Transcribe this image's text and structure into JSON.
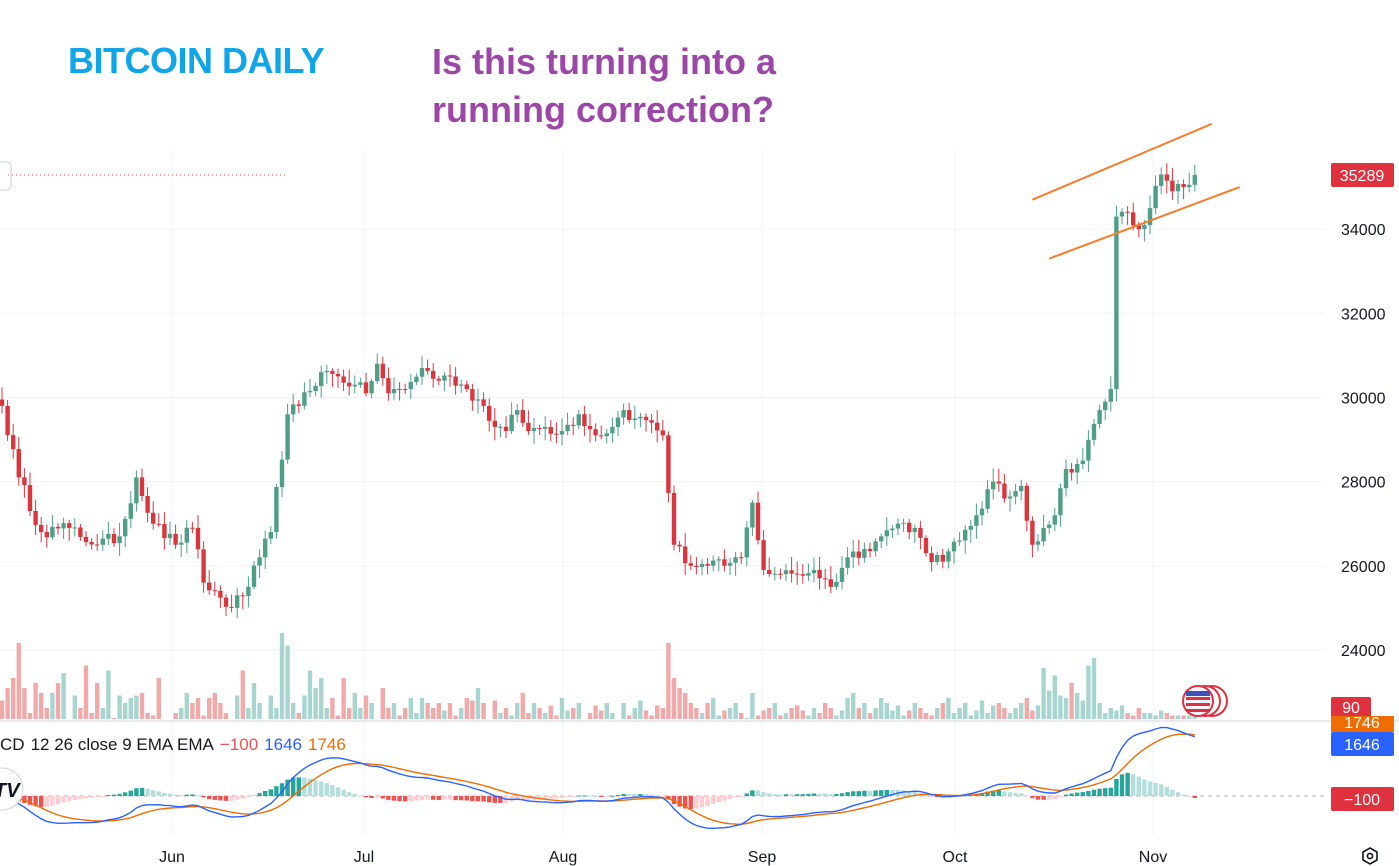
{
  "header": {
    "left_title": "BITCOIN DAILY",
    "right_title_line1": "Is this turning into a",
    "right_title_line2": "running correction?"
  },
  "colors": {
    "up": "#26a69a",
    "down": "#ef5350",
    "up_candle": "#4e9e88",
    "down_candle": "#d9363e",
    "left_title": "#0ea5e9",
    "right_title": "#9c47a8",
    "channel": "#f57c2a",
    "macd_line": "#2962ff",
    "signal_line": "#ef6c00",
    "price_tag": "#e0313f",
    "macd_tag": "#2962ff"
  },
  "indicator": {
    "legend_prefix": "CD",
    "legend_params": "12 26 close 9 EMA EMA",
    "hist_value": "−100",
    "macd_value": "1646",
    "signal_value": "1746",
    "hist_tag": "−100",
    "macd_tag": "1646",
    "signal_tag_partial": "1746"
  },
  "price_tag": "35289",
  "volume_tag": "90",
  "logo": "TV",
  "chart_data": {
    "type": "candlestick",
    "y_axis": {
      "ticks": [
        24000,
        26000,
        28000,
        30000,
        32000,
        34000
      ],
      "labels": [
        "24000",
        "26000",
        "28000",
        "30000",
        "32000",
        "34000"
      ]
    },
    "x_axis": {
      "labels": [
        "Jun",
        "Jul",
        "Aug",
        "Sep",
        "Oct",
        "Nov"
      ]
    },
    "ylim": [
      22700,
      36700
    ],
    "grid": true,
    "last_price": 35289,
    "channel": {
      "upper": [
        [
          184,
          34700
        ],
        [
          216,
          36500
        ]
      ],
      "lower": [
        [
          187,
          33300
        ],
        [
          221,
          35000
        ]
      ]
    },
    "anchors": [
      [
        0,
        29800
      ],
      [
        3,
        28100
      ],
      [
        7,
        26800
      ],
      [
        12,
        26900
      ],
      [
        17,
        26500
      ],
      [
        21,
        26700
      ],
      [
        24,
        28100
      ],
      [
        27,
        27000
      ],
      [
        31,
        26500
      ],
      [
        34,
        26900
      ],
      [
        36,
        25600
      ],
      [
        41,
        25000
      ],
      [
        44,
        25500
      ],
      [
        46,
        26200
      ],
      [
        48,
        26800
      ],
      [
        51,
        29600
      ],
      [
        53,
        29800
      ],
      [
        57,
        30600
      ],
      [
        60,
        30500
      ],
      [
        63,
        30300
      ],
      [
        65,
        30100
      ],
      [
        67,
        30800
      ],
      [
        69,
        30100
      ],
      [
        72,
        30200
      ],
      [
        75,
        30700
      ],
      [
        78,
        30400
      ],
      [
        80,
        30500
      ],
      [
        83,
        30200
      ],
      [
        86,
        29800
      ],
      [
        88,
        29300
      ],
      [
        90,
        29200
      ],
      [
        92,
        29700
      ],
      [
        94,
        29200
      ],
      [
        97,
        29300
      ],
      [
        100,
        29200
      ],
      [
        103,
        29600
      ],
      [
        106,
        29100
      ],
      [
        109,
        29300
      ],
      [
        111,
        29700
      ],
      [
        113,
        29500
      ],
      [
        116,
        29400
      ],
      [
        118,
        29100
      ],
      [
        120,
        26500
      ],
      [
        123,
        26000
      ],
      [
        126,
        26000
      ],
      [
        129,
        26000
      ],
      [
        132,
        26200
      ],
      [
        134,
        27500
      ],
      [
        136,
        25900
      ],
      [
        139,
        25800
      ],
      [
        142,
        25800
      ],
      [
        145,
        25900
      ],
      [
        148,
        25500
      ],
      [
        151,
        26200
      ],
      [
        154,
        26400
      ],
      [
        157,
        26700
      ],
      [
        160,
        27000
      ],
      [
        163,
        26900
      ],
      [
        165,
        26300
      ],
      [
        168,
        26100
      ],
      [
        171,
        26600
      ],
      [
        174,
        27200
      ],
      [
        177,
        28000
      ],
      [
        179,
        27600
      ],
      [
        182,
        27900
      ],
      [
        184,
        26500
      ],
      [
        186,
        26900
      ],
      [
        188,
        27200
      ],
      [
        190,
        28300
      ],
      [
        193,
        28500
      ],
      [
        196,
        29700
      ],
      [
        198,
        30200
      ],
      [
        199,
        34300
      ],
      [
        201,
        34400
      ],
      [
        203,
        34000
      ],
      [
        205,
        34500
      ],
      [
        207,
        35300
      ],
      [
        209,
        34900
      ],
      [
        211,
        35000
      ],
      [
        213,
        35289
      ]
    ],
    "volume": [
      47,
      42,
      38,
      24,
      42,
      52,
      40,
      44,
      50,
      44,
      40,
      36,
      55,
      45,
      50,
      33,
      52,
      40,
      50,
      35,
      54,
      45,
      48,
      46,
      45,
      44,
      52,
      53,
      38,
      56,
      58,
      52,
      50,
      44,
      48,
      46,
      53,
      46,
      44,
      48,
      52,
      60,
      45,
      35,
      50,
      40,
      48,
      58,
      45,
      50,
      20,
      25,
      48,
      52,
      45,
      35,
      42,
      38,
      50,
      46,
      53,
      38,
      50,
      44,
      50,
      45,
      48,
      55,
      42,
      50,
      48,
      53,
      50,
      46,
      52,
      46,
      48,
      50,
      48,
      51,
      48,
      53,
      50,
      46,
      47,
      42,
      48,
      56,
      47,
      52,
      50,
      53,
      48,
      44,
      52,
      48,
      50,
      52,
      49,
      53,
      46,
      51,
      50,
      48,
      55,
      52,
      49,
      51,
      48,
      52,
      55,
      48,
      53,
      50,
      47,
      51,
      53,
      49,
      50,
      24,
      38,
      42,
      44,
      48,
      50,
      52,
      48,
      46,
      53,
      51,
      50,
      48,
      52,
      54,
      44,
      53,
      51,
      50,
      48,
      53,
      52,
      50,
      49,
      51,
      53,
      50,
      52,
      48,
      50,
      53,
      51,
      46,
      44,
      50,
      48,
      52,
      50,
      46,
      48,
      51,
      49,
      53,
      51,
      48,
      50,
      52,
      53,
      50,
      48,
      46,
      52,
      50,
      48,
      53,
      51,
      47,
      52,
      49,
      48,
      50,
      52,
      50,
      48,
      46,
      51,
      49,
      34,
      43,
      37,
      45,
      46,
      40,
      44,
      47,
      33,
      30,
      48,
      52,
      50,
      51,
      49,
      52,
      53,
      50,
      52,
      52,
      53,
      51,
      52,
      53,
      53,
      53,
      53
    ]
  }
}
